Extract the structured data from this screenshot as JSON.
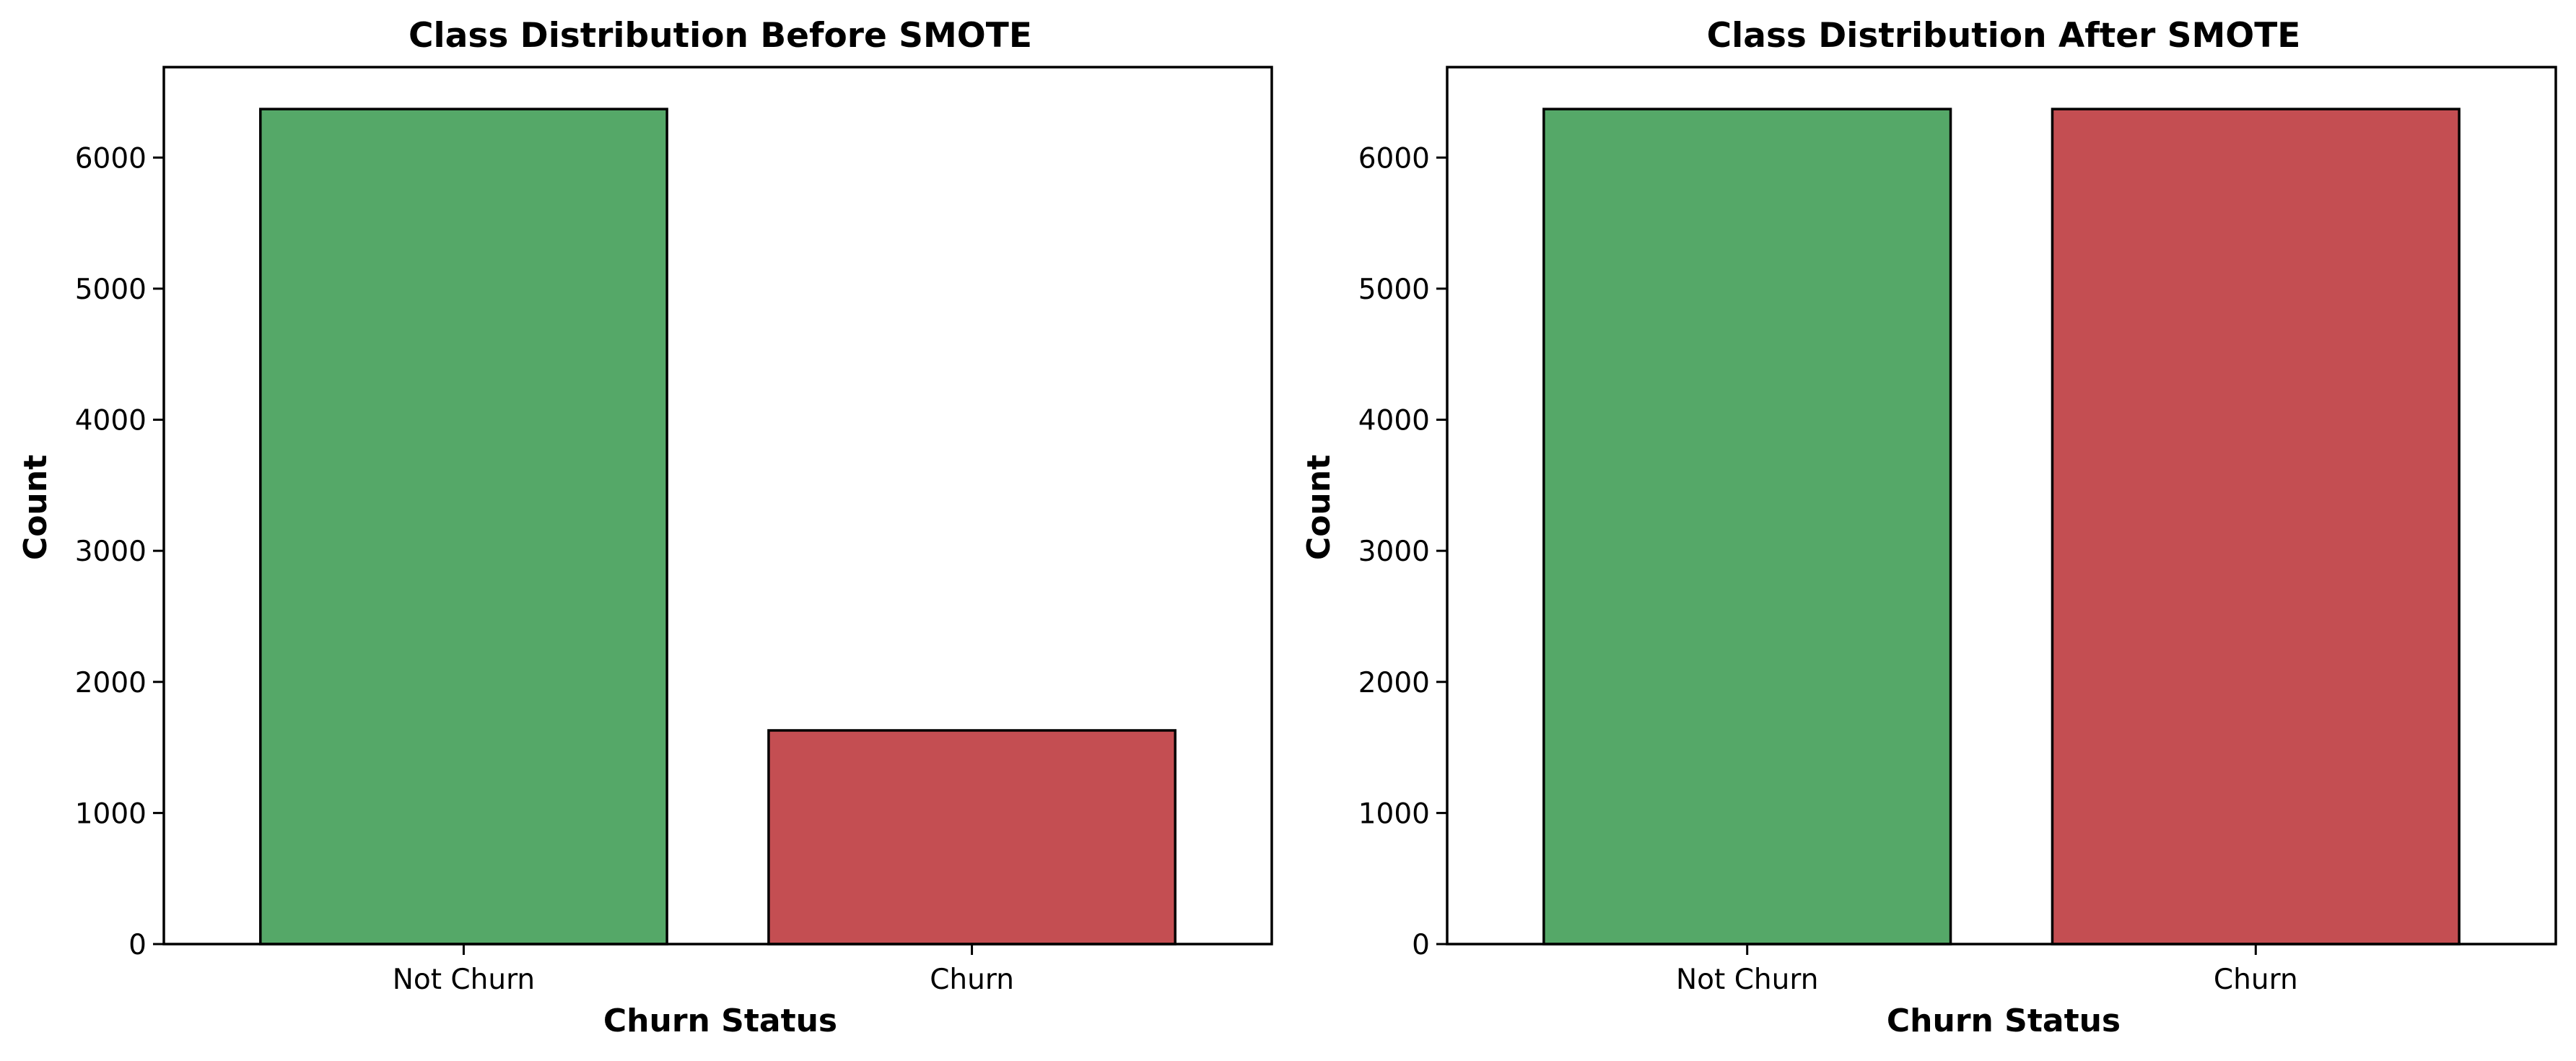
{
  "chart_data": [
    {
      "type": "bar",
      "title": "Class Distribution Before SMOTE",
      "xlabel": "Churn Status",
      "ylabel": "Count",
      "categories": [
        "Not Churn",
        "Churn"
      ],
      "values": [
        6370,
        1630
      ],
      "colors": [
        "#55a868",
        "#c44e52"
      ],
      "edgecolor": "#000000",
      "ylim": [
        0,
        6690
      ],
      "yticks": [
        0,
        1000,
        2000,
        3000,
        4000,
        5000,
        6000
      ],
      "grid": false
    },
    {
      "type": "bar",
      "title": "Class Distribution After SMOTE",
      "xlabel": "Churn Status",
      "ylabel": "Count",
      "categories": [
        "Not Churn",
        "Churn"
      ],
      "values": [
        6370,
        6370
      ],
      "colors": [
        "#55a868",
        "#c44e52"
      ],
      "edgecolor": "#000000",
      "ylim": [
        0,
        6690
      ],
      "yticks": [
        0,
        1000,
        2000,
        3000,
        4000,
        5000,
        6000
      ],
      "grid": false
    }
  ]
}
